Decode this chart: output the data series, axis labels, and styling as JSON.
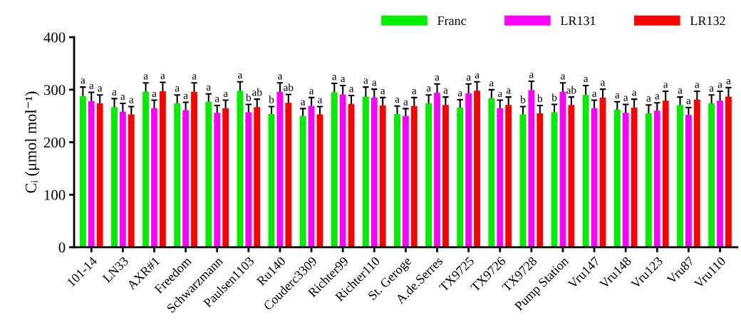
{
  "chart_data": {
    "type": "bar",
    "ylabel": "Cᵢ (μmol mol⁻¹)",
    "categories": [
      "101-14",
      "LN33",
      "AXR#1",
      "Freedom",
      "Schwarzmann",
      "Paulsen1103",
      "Ru140",
      "Couderc3309",
      "Richter99",
      "Richter110",
      "St. Geroge",
      "A.de.Serres",
      "TX9725",
      "TX9726",
      "TX9728",
      "Pump Station",
      "Vru147",
      "Vru148",
      "Vru123",
      "Vru87",
      "Vru110"
    ],
    "series": [
      {
        "name": "Franc",
        "color": "#00ee00",
        "values": [
          288,
          267,
          296,
          274,
          277,
          298,
          254,
          250,
          295,
          287,
          254,
          274,
          266,
          284,
          253,
          257,
          290,
          262,
          255,
          271,
          274
        ],
        "errors": [
          17,
          16,
          17,
          16,
          15,
          17,
          14,
          14,
          17,
          18,
          15,
          16,
          15,
          16,
          15,
          15,
          18,
          15,
          16,
          15,
          16
        ],
        "value_labels": [
          "a",
          "a",
          "a",
          "a",
          "a",
          "a",
          "b",
          "a",
          "a",
          "a",
          "a",
          "a",
          "a",
          "a",
          "b",
          "b",
          "a",
          "a",
          "a",
          "a",
          "a"
        ]
      },
      {
        "name": "LR131",
        "color": "#ff00ff",
        "values": [
          278,
          258,
          265,
          261,
          256,
          257,
          296,
          269,
          291,
          285,
          250,
          294,
          293,
          265,
          299,
          296,
          265,
          256,
          260,
          252,
          279
        ],
        "errors": [
          17,
          16,
          15,
          15,
          14,
          15,
          17,
          16,
          17,
          16,
          14,
          17,
          18,
          15,
          17,
          17,
          15,
          16,
          15,
          14,
          18
        ],
        "value_labels": [
          "a",
          "a",
          "a",
          "a",
          "a",
          "b",
          "a",
          "a",
          "a",
          "a",
          "a",
          "a",
          "a",
          "a",
          "a",
          "a",
          "a",
          "a",
          "a",
          "a",
          "a"
        ]
      },
      {
        "name": "LR132",
        "color": "#ff0000",
        "values": [
          274,
          253,
          297,
          296,
          265,
          267,
          275,
          253,
          273,
          270,
          269,
          271,
          298,
          271,
          255,
          271,
          285,
          266,
          279,
          281,
          287
        ],
        "errors": [
          16,
          15,
          17,
          17,
          15,
          15,
          16,
          15,
          16,
          15,
          16,
          15,
          17,
          15,
          15,
          15,
          16,
          16,
          18,
          16,
          17
        ],
        "value_labels": [
          "a",
          "a",
          "a",
          "a",
          "a",
          "ab",
          "ab",
          "a",
          "a",
          "a",
          "a",
          "a",
          "a",
          "a",
          "b",
          "ab",
          "a",
          "a",
          "a",
          "a",
          "a"
        ]
      }
    ],
    "ylim": [
      0,
      400
    ],
    "yticks": [
      0,
      100,
      200,
      300,
      400
    ],
    "grid": false,
    "legend": "top right"
  }
}
